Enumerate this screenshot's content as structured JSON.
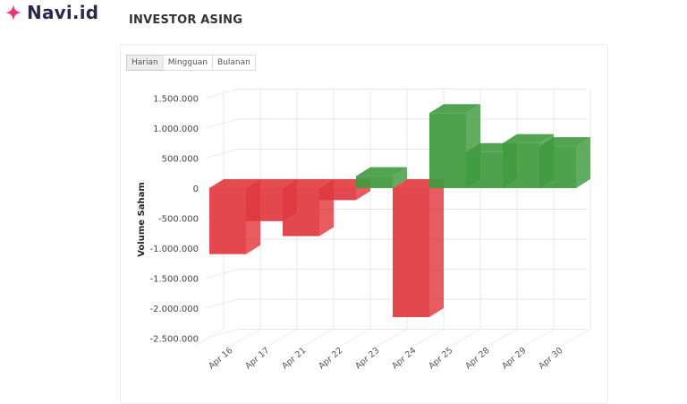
{
  "brand": {
    "name": "Navi.id",
    "color": "#e8347a"
  },
  "page_title": "INVESTOR ASING",
  "tabs": [
    {
      "label": "Harian",
      "active": true
    },
    {
      "label": "Mingguan",
      "active": false
    },
    {
      "label": "Bulanan",
      "active": false
    }
  ],
  "colors": {
    "positive": "#3f9a3f",
    "negative": "#e0383e"
  },
  "chart_data": {
    "type": "bar",
    "title": "INVESTOR ASING",
    "xlabel": "",
    "ylabel": "Volume Saham",
    "categories": [
      "Apr 16",
      "Apr 17",
      "Apr 21",
      "Apr 22",
      "Apr 23",
      "Apr 24",
      "Apr 25",
      "Apr 28",
      "Apr 29",
      "Apr 30"
    ],
    "values": [
      -1100000,
      -550000,
      -800000,
      -200000,
      200000,
      -2150000,
      1250000,
      600000,
      750000,
      700000
    ],
    "yticks": [
      "1.500.000",
      "1.000.000",
      "500.000",
      "0",
      "-500.000",
      "-1.000.000",
      "-1.500.000",
      "-2.000.000",
      "-2.500.000"
    ],
    "ytick_values": [
      1500000,
      1000000,
      500000,
      0,
      -500000,
      -1000000,
      -1500000,
      -2000000,
      -2500000
    ],
    "ylim": [
      -2500000,
      1500000
    ],
    "grid": true,
    "style": "3d-column",
    "legend": "none"
  }
}
